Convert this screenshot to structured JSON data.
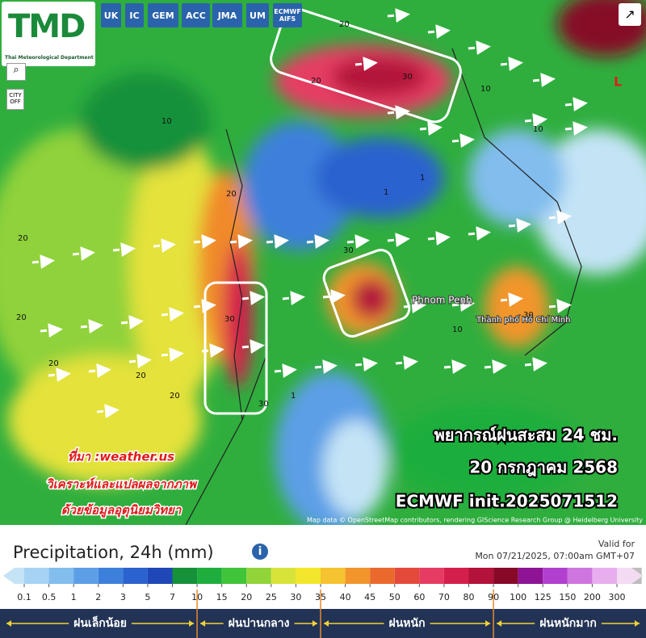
{
  "logo": {
    "title": "TMD",
    "subtitle": "Thai Meteorological Department"
  },
  "models": [
    "UK",
    "IC",
    "GEM",
    "ACC",
    "JMA",
    "UM",
    "ECMWF AIFS"
  ],
  "controls": {
    "city": "CITY OFF"
  },
  "map": {
    "places": [
      "Phnom Penh",
      "Thành phố Hồ Chí Minh"
    ],
    "low_marker": "L",
    "contour_labels": [
      "20",
      "30",
      "20",
      "10",
      "30",
      "20",
      "10",
      "1",
      "30",
      "20",
      "20",
      "10",
      "20",
      "1",
      "20",
      "30",
      "10",
      "30",
      "1",
      "20"
    ],
    "attribution": "Map data © OpenStreetMap contributors, rendering GIScience Research Group @ Heidelberg University"
  },
  "overlay": {
    "lines": [
      "พยากรณ์ฝนสะสม 24 ชม.",
      "20 กรกฎาคม 2568",
      "ECMWF init.2025071512"
    ],
    "source": [
      "ที่มา :weather.us",
      "วิเคราะห์และแปลผลจากภาพ",
      "ด้วยข้อมูลอุตุนิยมวิทยา"
    ]
  },
  "legend": {
    "title": "Precipitation, 24h (mm)",
    "valid_label": "Valid for",
    "valid_time": "Mon 07/21/2025, 07:00am GMT+07",
    "ticks": [
      0.1,
      0.5,
      1,
      2,
      3,
      5,
      7,
      10,
      15,
      20,
      25,
      30,
      35,
      40,
      45,
      50,
      60,
      70,
      80,
      90,
      100,
      125,
      150,
      200,
      300
    ],
    "colors": [
      "#c4e4f6",
      "#a6d3f3",
      "#82bdee",
      "#5c9fe6",
      "#3d80dc",
      "#2a62cf",
      "#1f47b8",
      "#16913a",
      "#1fae3d",
      "#3fc43a",
      "#91d43a",
      "#d8e33a",
      "#f3e62c",
      "#f5c230",
      "#f2952c",
      "#ea6a2e",
      "#e44a3c",
      "#e63c63",
      "#d41f4c",
      "#b3123a",
      "#860a28",
      "#8e1496",
      "#b13fcf",
      "#cf75e0",
      "#e7aeee",
      "#f3dcf3",
      "#bdbdbd"
    ],
    "categories": [
      {
        "label": "ฝนเล็กน้อย"
      },
      {
        "label": "ฝนปานกลาง"
      },
      {
        "label": "ฝนหนัก"
      },
      {
        "label": "ฝนหนักมาก"
      }
    ]
  }
}
